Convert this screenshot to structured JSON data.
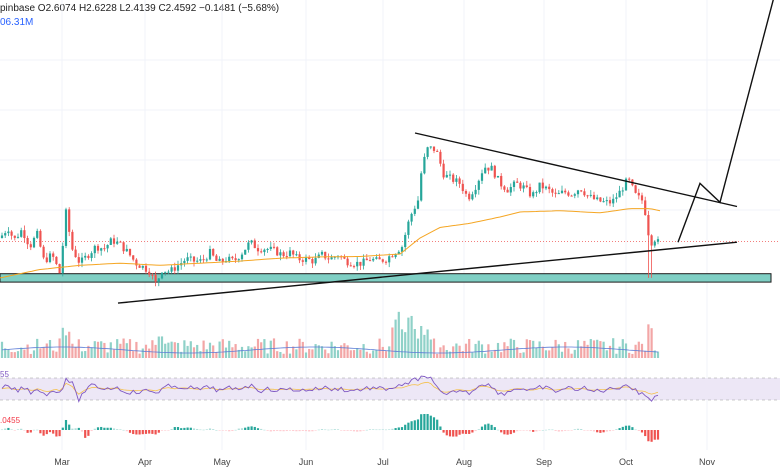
{
  "header": {
    "ohlc_line": "pinbase  O2.6074  H2.6228  L2.4139  C2.4592  −0.1481 (−5.68%)",
    "volume_line": "06.31M"
  },
  "indicators": {
    "rsi_label": "55",
    "macd_label": ".0455"
  },
  "colors": {
    "up": "#26a69a",
    "down": "#ef5350",
    "ma": "#f5a623",
    "support_zone": "#7fcfc4",
    "rsi_line": "#7e57c2",
    "rsi_band": "#ede7f6",
    "vol_ma": "#5b7bd6",
    "price_line": "#ef5350"
  },
  "chart_data": {
    "type": "candlestick",
    "x_labels": [
      "Mar",
      "Apr",
      "May",
      "Jun",
      "Jul",
      "Aug",
      "Sep",
      "Oct",
      "Nov"
    ],
    "price_keys": [
      [
        0,
        3.1
      ],
      [
        8,
        3.35
      ],
      [
        14,
        3.05
      ],
      [
        22,
        3.3
      ],
      [
        30,
        2.9
      ],
      [
        37,
        3.2
      ],
      [
        44,
        2.55
      ],
      [
        52,
        2.7
      ],
      [
        60,
        2.25
      ],
      [
        66,
        3.7
      ],
      [
        72,
        2.85
      ],
      [
        80,
        2.5
      ],
      [
        88,
        2.7
      ],
      [
        96,
        2.9
      ],
      [
        104,
        2.85
      ],
      [
        112,
        3.05
      ],
      [
        120,
        2.95
      ],
      [
        128,
        2.75
      ],
      [
        136,
        2.5
      ],
      [
        144,
        2.4
      ],
      [
        150,
        2.3
      ],
      [
        156,
        2.0
      ],
      [
        162,
        2.35
      ],
      [
        170,
        2.3
      ],
      [
        178,
        2.45
      ],
      [
        186,
        2.6
      ],
      [
        194,
        2.55
      ],
      [
        202,
        2.55
      ],
      [
        210,
        2.75
      ],
      [
        218,
        2.5
      ],
      [
        226,
        2.6
      ],
      [
        234,
        2.55
      ],
      [
        242,
        2.75
      ],
      [
        250,
        3.0
      ],
      [
        258,
        2.85
      ],
      [
        266,
        2.85
      ],
      [
        274,
        2.8
      ],
      [
        282,
        2.7
      ],
      [
        290,
        2.75
      ],
      [
        298,
        2.6
      ],
      [
        306,
        2.6
      ],
      [
        314,
        2.55
      ],
      [
        322,
        2.7
      ],
      [
        330,
        2.6
      ],
      [
        338,
        2.7
      ],
      [
        346,
        2.55
      ],
      [
        354,
        2.5
      ],
      [
        362,
        2.5
      ],
      [
        370,
        2.6
      ],
      [
        378,
        2.55
      ],
      [
        386,
        2.6
      ],
      [
        394,
        2.75
      ],
      [
        402,
        2.9
      ],
      [
        410,
        3.6
      ],
      [
        418,
        4.0
      ],
      [
        422,
        4.8
      ],
      [
        428,
        5.25
      ],
      [
        436,
        5.2
      ],
      [
        444,
        4.6
      ],
      [
        452,
        4.5
      ],
      [
        460,
        4.4
      ],
      [
        468,
        4.05
      ],
      [
        476,
        4.35
      ],
      [
        484,
        4.8
      ],
      [
        492,
        4.75
      ],
      [
        500,
        4.4
      ],
      [
        508,
        4.25
      ],
      [
        516,
        4.4
      ],
      [
        524,
        4.3
      ],
      [
        532,
        4.1
      ],
      [
        540,
        4.35
      ],
      [
        548,
        4.25
      ],
      [
        556,
        4.1
      ],
      [
        564,
        4.2
      ],
      [
        572,
        4.15
      ],
      [
        580,
        4.3
      ],
      [
        588,
        4.1
      ],
      [
        596,
        4.0
      ],
      [
        604,
        3.95
      ],
      [
        612,
        3.95
      ],
      [
        620,
        4.2
      ],
      [
        628,
        4.5
      ],
      [
        636,
        4.1
      ],
      [
        642,
        4.0
      ],
      [
        646,
        3.65
      ],
      [
        650,
        2.95
      ],
      [
        654,
        3.1
      ],
      [
        660,
        2.95
      ]
    ],
    "ma_keys": [
      [
        0,
        2.15
      ],
      [
        40,
        2.35
      ],
      [
        80,
        2.45
      ],
      [
        120,
        2.5
      ],
      [
        160,
        2.45
      ],
      [
        200,
        2.5
      ],
      [
        240,
        2.55
      ],
      [
        280,
        2.62
      ],
      [
        320,
        2.65
      ],
      [
        360,
        2.66
      ],
      [
        400,
        2.72
      ],
      [
        420,
        3.1
      ],
      [
        440,
        3.35
      ],
      [
        470,
        3.45
      ],
      [
        500,
        3.6
      ],
      [
        520,
        3.72
      ],
      [
        560,
        3.75
      ],
      [
        600,
        3.7
      ],
      [
        630,
        3.8
      ],
      [
        650,
        3.8
      ],
      [
        660,
        3.75
      ]
    ],
    "support_zone": [
      2.05,
      2.25
    ],
    "current_price": 3.02,
    "trendlines": [
      {
        "name": "descending resistance",
        "points": [
          [
            415,
            5.6
          ],
          [
            737,
            3.85
          ]
        ]
      },
      {
        "name": "ascending support",
        "points": [
          [
            118,
            1.55
          ],
          [
            737,
            3.0
          ]
        ]
      }
    ],
    "projection": [
      [
        678,
        3.0
      ],
      [
        700,
        4.4
      ],
      [
        720,
        3.95
      ],
      [
        778,
        9.2
      ]
    ],
    "rsi_zones": [
      30,
      70
    ]
  }
}
